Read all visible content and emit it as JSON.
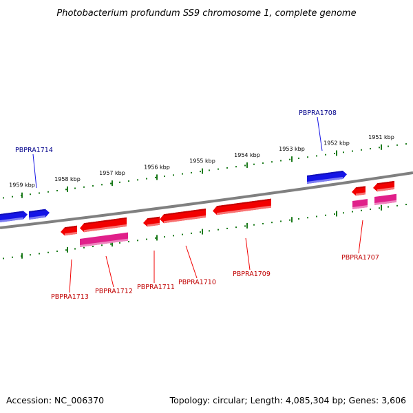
{
  "title": "Photobacterium profundum SS9 chromosome 1, complete genome",
  "footer": {
    "accession": "Accession: NC_006370",
    "summary": "Topology: circular; Length: 4,085,304 bp; Genes: 3,606"
  },
  "colors": {
    "backbone": "#808080",
    "tick": "#1a7a1a",
    "forward_gene": "#1515e6",
    "reverse_gene": "#f20000",
    "pink_feature": "#e0208a",
    "forward_label": "#00008b",
    "reverse_label": "#c00000"
  },
  "scale_ticks": [
    {
      "label": "1959 kbp"
    },
    {
      "label": "1958 kbp"
    },
    {
      "label": "1957 kbp"
    },
    {
      "label": "1956 kbp"
    },
    {
      "label": "1955 kbp"
    },
    {
      "label": "1954 kbp"
    },
    {
      "label": "1953 kbp"
    },
    {
      "label": "1952 kbp"
    },
    {
      "label": "1951 kbp"
    }
  ],
  "gene_labels": [
    {
      "name": "PBPRA1714",
      "strand": "forward"
    },
    {
      "name": "PBPRA1708",
      "strand": "forward"
    },
    {
      "name": "PBPRA1713",
      "strand": "reverse"
    },
    {
      "name": "PBPRA1712",
      "strand": "reverse"
    },
    {
      "name": "PBPRA1711",
      "strand": "reverse"
    },
    {
      "name": "PBPRA1710",
      "strand": "reverse"
    },
    {
      "name": "PBPRA1709",
      "strand": "reverse"
    },
    {
      "name": "PBPRA1707",
      "strand": "reverse"
    }
  ]
}
